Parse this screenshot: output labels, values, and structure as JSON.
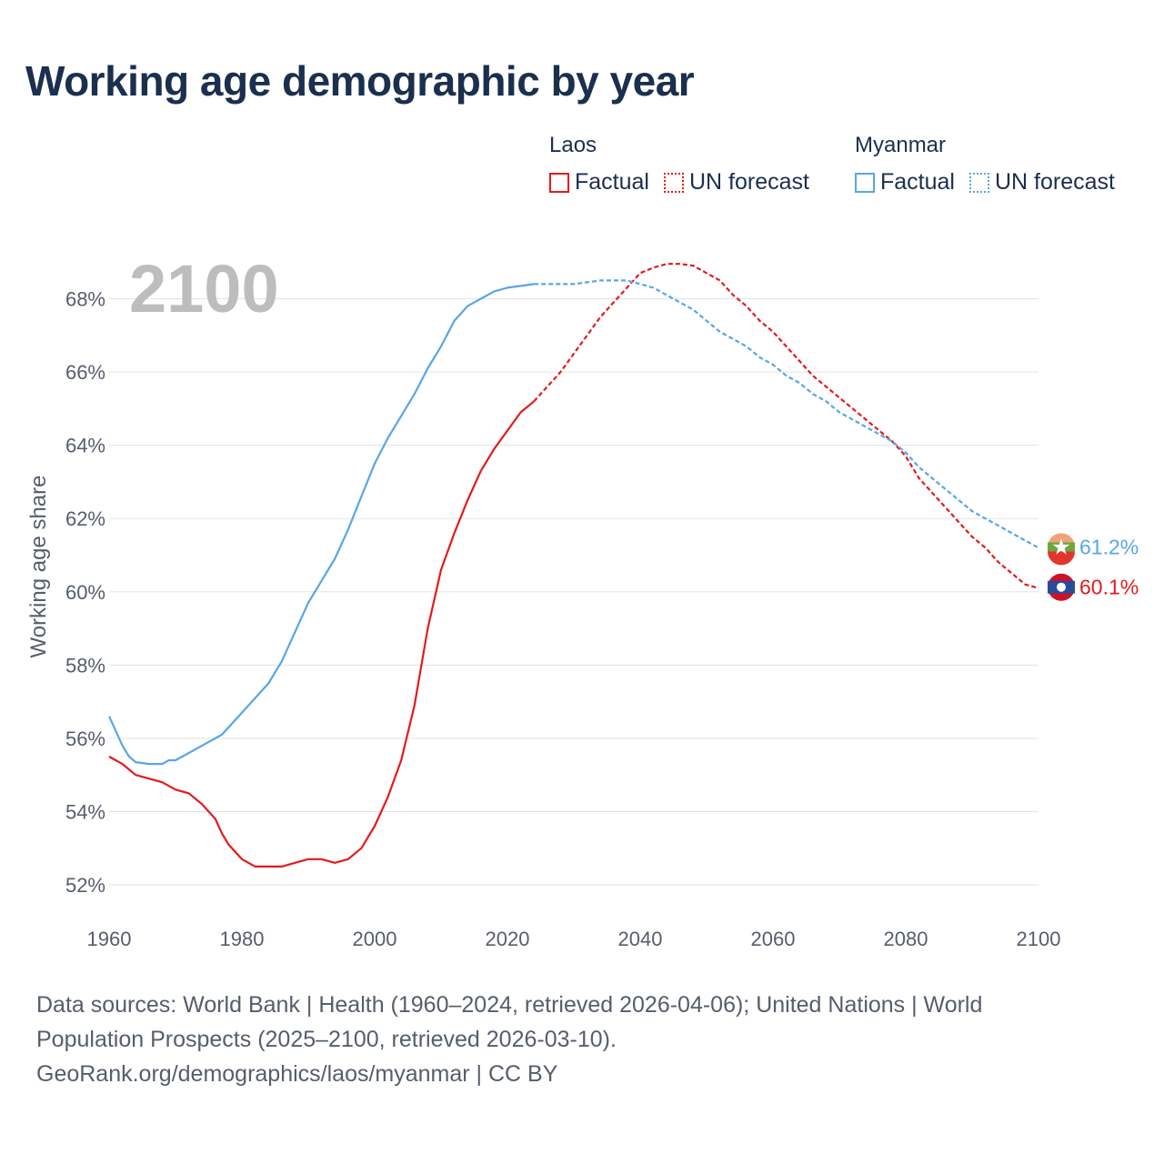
{
  "title": "Working age demographic by year",
  "legend": [
    {
      "group": "Laos",
      "color": "#e31a1c",
      "items": [
        {
          "label": "Factual",
          "style": "solid"
        },
        {
          "label": "UN forecast",
          "style": "dotted"
        }
      ]
    },
    {
      "group": "Myanmar",
      "color": "#5aa5e6",
      "items": [
        {
          "label": "Factual",
          "style": "solid"
        },
        {
          "label": "UN forecast",
          "style": "dotted"
        }
      ]
    }
  ],
  "current_year_label": "2100",
  "footer": {
    "line1": "Data sources: World Bank | Health (1960–2024, retrieved 2026-04-06); United Nations | World",
    "line2": "Population Prospects (2025–2100, retrieved 2026-03-10).",
    "line3": "GeoRank.org/demographics/laos/myanmar | CC BY"
  },
  "chart_data": {
    "type": "line",
    "title": "Working age demographic by year",
    "xlabel": "",
    "ylabel": "Working age share",
    "xlim": [
      1960,
      2100
    ],
    "ylim": [
      51.5,
      69.5
    ],
    "x_ticks": [
      1960,
      1980,
      2000,
      2020,
      2040,
      2060,
      2080,
      2100
    ],
    "y_ticks": [
      52,
      54,
      56,
      58,
      60,
      62,
      64,
      66,
      68
    ],
    "y_tick_suffix": "%",
    "forecast_start": 2024,
    "series": [
      {
        "name": "Laos",
        "color": "#e31a1c",
        "end_label": "60.1%",
        "icon": "laos-flag-icon",
        "points": [
          [
            1960,
            55.5
          ],
          [
            1962,
            55.3
          ],
          [
            1964,
            55.0
          ],
          [
            1966,
            54.9
          ],
          [
            1968,
            54.8
          ],
          [
            1970,
            54.6
          ],
          [
            1972,
            54.5
          ],
          [
            1974,
            54.2
          ],
          [
            1976,
            53.8
          ],
          [
            1977,
            53.4
          ],
          [
            1978,
            53.1
          ],
          [
            1980,
            52.7
          ],
          [
            1982,
            52.5
          ],
          [
            1984,
            52.5
          ],
          [
            1986,
            52.5
          ],
          [
            1988,
            52.6
          ],
          [
            1990,
            52.7
          ],
          [
            1992,
            52.7
          ],
          [
            1994,
            52.6
          ],
          [
            1996,
            52.7
          ],
          [
            1998,
            53.0
          ],
          [
            2000,
            53.6
          ],
          [
            2002,
            54.4
          ],
          [
            2004,
            55.4
          ],
          [
            2006,
            56.9
          ],
          [
            2008,
            59.0
          ],
          [
            2010,
            60.6
          ],
          [
            2012,
            61.6
          ],
          [
            2014,
            62.5
          ],
          [
            2016,
            63.3
          ],
          [
            2018,
            63.9
          ],
          [
            2020,
            64.4
          ],
          [
            2022,
            64.9
          ],
          [
            2024,
            65.2
          ],
          [
            2026,
            65.6
          ],
          [
            2028,
            66.0
          ],
          [
            2030,
            66.5
          ],
          [
            2032,
            67.0
          ],
          [
            2034,
            67.5
          ],
          [
            2036,
            67.9
          ],
          [
            2038,
            68.3
          ],
          [
            2040,
            68.7
          ],
          [
            2042,
            68.85
          ],
          [
            2044,
            68.95
          ],
          [
            2046,
            68.95
          ],
          [
            2048,
            68.9
          ],
          [
            2050,
            68.7
          ],
          [
            2052,
            68.5
          ],
          [
            2054,
            68.1
          ],
          [
            2056,
            67.8
          ],
          [
            2058,
            67.4
          ],
          [
            2060,
            67.1
          ],
          [
            2062,
            66.7
          ],
          [
            2064,
            66.3
          ],
          [
            2066,
            65.9
          ],
          [
            2068,
            65.6
          ],
          [
            2070,
            65.3
          ],
          [
            2072,
            65.0
          ],
          [
            2074,
            64.7
          ],
          [
            2076,
            64.4
          ],
          [
            2078,
            64.1
          ],
          [
            2080,
            63.7
          ],
          [
            2082,
            63.1
          ],
          [
            2084,
            62.7
          ],
          [
            2086,
            62.3
          ],
          [
            2088,
            61.9
          ],
          [
            2090,
            61.5
          ],
          [
            2092,
            61.2
          ],
          [
            2094,
            60.8
          ],
          [
            2096,
            60.5
          ],
          [
            2098,
            60.2
          ],
          [
            2100,
            60.1
          ]
        ]
      },
      {
        "name": "Myanmar",
        "color": "#5aa5e6",
        "end_label": "61.2%",
        "icon": "myanmar-flag-icon",
        "points": [
          [
            1960,
            56.6
          ],
          [
            1961,
            56.2
          ],
          [
            1962,
            55.8
          ],
          [
            1963,
            55.5
          ],
          [
            1964,
            55.35
          ],
          [
            1966,
            55.3
          ],
          [
            1968,
            55.3
          ],
          [
            1969,
            55.4
          ],
          [
            1970,
            55.4
          ],
          [
            1972,
            55.6
          ],
          [
            1974,
            55.8
          ],
          [
            1976,
            56.0
          ],
          [
            1977,
            56.1
          ],
          [
            1978,
            56.3
          ],
          [
            1980,
            56.7
          ],
          [
            1982,
            57.1
          ],
          [
            1984,
            57.5
          ],
          [
            1986,
            58.1
          ],
          [
            1988,
            58.9
          ],
          [
            1990,
            59.7
          ],
          [
            1992,
            60.3
          ],
          [
            1994,
            60.9
          ],
          [
            1996,
            61.7
          ],
          [
            1998,
            62.6
          ],
          [
            2000,
            63.5
          ],
          [
            2002,
            64.2
          ],
          [
            2004,
            64.8
          ],
          [
            2006,
            65.4
          ],
          [
            2008,
            66.1
          ],
          [
            2010,
            66.7
          ],
          [
            2012,
            67.4
          ],
          [
            2014,
            67.8
          ],
          [
            2016,
            68.0
          ],
          [
            2018,
            68.2
          ],
          [
            2020,
            68.3
          ],
          [
            2022,
            68.35
          ],
          [
            2024,
            68.4
          ],
          [
            2026,
            68.4
          ],
          [
            2028,
            68.4
          ],
          [
            2030,
            68.4
          ],
          [
            2032,
            68.45
          ],
          [
            2034,
            68.5
          ],
          [
            2036,
            68.5
          ],
          [
            2038,
            68.5
          ],
          [
            2040,
            68.4
          ],
          [
            2042,
            68.3
          ],
          [
            2044,
            68.1
          ],
          [
            2046,
            67.9
          ],
          [
            2048,
            67.7
          ],
          [
            2050,
            67.4
          ],
          [
            2052,
            67.1
          ],
          [
            2054,
            66.9
          ],
          [
            2056,
            66.7
          ],
          [
            2058,
            66.4
          ],
          [
            2060,
            66.2
          ],
          [
            2062,
            65.9
          ],
          [
            2064,
            65.7
          ],
          [
            2066,
            65.4
          ],
          [
            2068,
            65.2
          ],
          [
            2070,
            64.9
          ],
          [
            2072,
            64.7
          ],
          [
            2074,
            64.5
          ],
          [
            2076,
            64.3
          ],
          [
            2078,
            64.1
          ],
          [
            2080,
            63.8
          ],
          [
            2082,
            63.4
          ],
          [
            2084,
            63.1
          ],
          [
            2086,
            62.8
          ],
          [
            2088,
            62.5
          ],
          [
            2090,
            62.2
          ],
          [
            2092,
            62.0
          ],
          [
            2094,
            61.8
          ],
          [
            2096,
            61.6
          ],
          [
            2098,
            61.4
          ],
          [
            2100,
            61.2
          ]
        ]
      }
    ]
  }
}
